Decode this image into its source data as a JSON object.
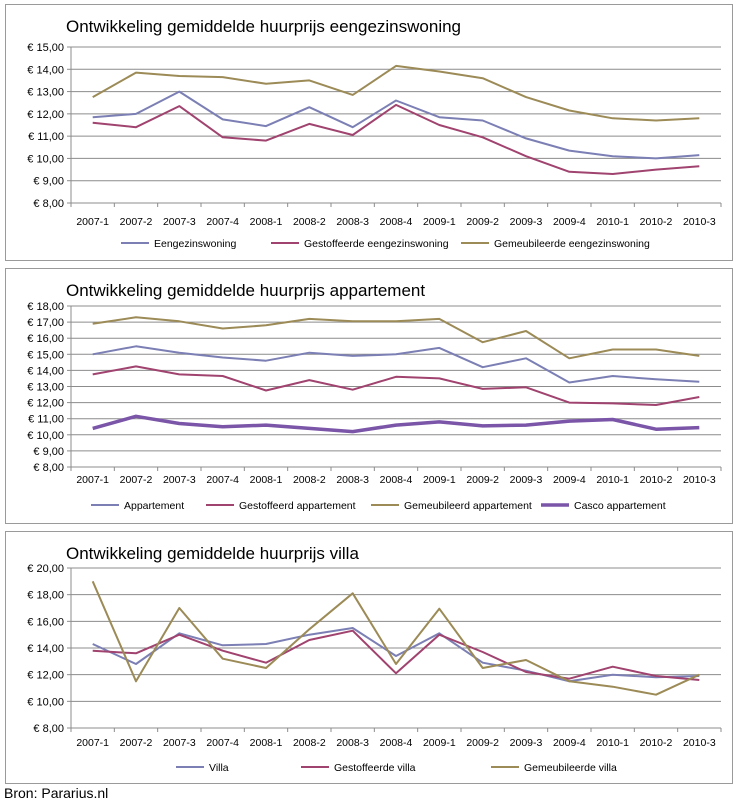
{
  "chart_data": [
    {
      "type": "line",
      "title": "Ontwikkeling gemiddelde huurprijs eengezinswoning",
      "xlabel": "",
      "ylabel": "",
      "categories": [
        "2007-1",
        "2007-2",
        "2007-3",
        "2007-4",
        "2008-1",
        "2008-2",
        "2008-3",
        "2008-4",
        "2009-1",
        "2009-2",
        "2009-3",
        "2009-4",
        "2010-1",
        "2010-2",
        "2010-3"
      ],
      "ylim": [
        8,
        15
      ],
      "ystep": 1,
      "yticks": [
        "€ 8,00",
        "€ 9,00",
        "€ 10,00",
        "€ 11,00",
        "€ 12,00",
        "€ 13,00",
        "€ 14,00",
        "€ 15,00"
      ],
      "grid": true,
      "legend": "bottom",
      "series": [
        {
          "name": "Eengezinswoning",
          "color": "#7b7fb4",
          "values": [
            11.85,
            12.0,
            13.0,
            11.75,
            11.45,
            12.3,
            11.4,
            12.6,
            11.85,
            11.7,
            10.9,
            10.35,
            10.1,
            10.0,
            10.15
          ]
        },
        {
          "name": "Gestoffeerde eengezinswoning",
          "color": "#a0436f",
          "values": [
            11.6,
            11.4,
            12.35,
            10.95,
            10.8,
            11.55,
            11.05,
            12.4,
            11.5,
            10.95,
            10.1,
            9.4,
            9.3,
            9.5,
            9.65
          ]
        },
        {
          "name": "Gemeubileerde eengezinswoning",
          "color": "#9c8b57",
          "values": [
            12.75,
            13.85,
            13.7,
            13.65,
            13.35,
            13.5,
            12.85,
            14.15,
            13.9,
            13.6,
            12.75,
            12.15,
            11.8,
            11.7,
            11.8
          ]
        }
      ]
    },
    {
      "type": "line",
      "title": "Ontwikkeling gemiddelde huurprijs appartement",
      "xlabel": "",
      "ylabel": "",
      "categories": [
        "2007-1",
        "2007-2",
        "2007-3",
        "2007-4",
        "2008-1",
        "2008-2",
        "2008-3",
        "2008-4",
        "2009-1",
        "2009-2",
        "2009-3",
        "2009-4",
        "2010-1",
        "2010-2",
        "2010-3"
      ],
      "ylim": [
        8,
        18
      ],
      "ystep": 1,
      "yticks": [
        "€ 8,00",
        "€ 9,00",
        "€ 10,00",
        "€ 11,00",
        "€ 12,00",
        "€ 13,00",
        "€ 14,00",
        "€ 15,00",
        "€ 16,00",
        "€ 17,00",
        "€ 18,00"
      ],
      "grid": true,
      "legend": "bottom",
      "series": [
        {
          "name": "Appartement",
          "color": "#7b7fb4",
          "values": [
            15.0,
            15.5,
            15.1,
            14.8,
            14.6,
            15.1,
            14.9,
            15.0,
            15.4,
            14.2,
            14.75,
            13.25,
            13.65,
            13.45,
            13.3
          ]
        },
        {
          "name": "Gestoffeerd appartement",
          "color": "#a0436f",
          "values": [
            13.75,
            14.25,
            13.75,
            13.65,
            12.75,
            13.4,
            12.8,
            13.6,
            13.5,
            12.85,
            12.95,
            12.0,
            11.95,
            11.85,
            12.35
          ]
        },
        {
          "name": "Gemeubileerd appartement",
          "color": "#9c8b57",
          "values": [
            16.9,
            17.3,
            17.05,
            16.6,
            16.8,
            17.2,
            17.05,
            17.05,
            17.2,
            15.75,
            16.45,
            14.75,
            15.3,
            15.3,
            14.9
          ]
        },
        {
          "name": "Casco appartement",
          "color": "#7a55a8",
          "thick": true,
          "values": [
            10.4,
            11.15,
            10.7,
            10.5,
            10.6,
            10.4,
            10.2,
            10.6,
            10.8,
            10.55,
            10.6,
            10.85,
            10.95,
            10.35,
            10.45
          ]
        }
      ]
    },
    {
      "type": "line",
      "title": "Ontwikkeling gemiddelde huurprijs villa",
      "xlabel": "",
      "ylabel": "",
      "categories": [
        "2007-1",
        "2007-2",
        "2007-3",
        "2007-4",
        "2008-1",
        "2008-2",
        "2008-3",
        "2008-4",
        "2009-1",
        "2009-2",
        "2009-3",
        "2009-4",
        "2010-1",
        "2010-2",
        "2010-3"
      ],
      "ylim": [
        8,
        20
      ],
      "ystep": 2,
      "yticks": [
        "€ 8,00",
        "€ 10,00",
        "€ 12,00",
        "€ 14,00",
        "€ 16,00",
        "€ 18,00",
        "€ 20,00"
      ],
      "grid": true,
      "legend": "bottom",
      "series": [
        {
          "name": "Villa",
          "color": "#7b7fb4",
          "values": [
            14.3,
            12.8,
            15.1,
            14.2,
            14.3,
            15.0,
            15.5,
            13.4,
            15.1,
            12.9,
            12.3,
            11.5,
            12.0,
            11.8,
            11.9
          ]
        },
        {
          "name": "Gestoffeerde villa",
          "color": "#a0436f",
          "values": [
            13.8,
            13.6,
            15.0,
            13.8,
            12.9,
            14.6,
            15.3,
            12.1,
            15.0,
            13.7,
            12.2,
            11.7,
            12.6,
            11.9,
            11.6
          ]
        },
        {
          "name": "Gemeubileerde villa",
          "color": "#9c8b57",
          "values": [
            19.0,
            11.5,
            17.0,
            13.2,
            12.5,
            15.4,
            18.1,
            12.8,
            16.95,
            12.5,
            13.1,
            11.5,
            11.1,
            10.5,
            12.0
          ]
        }
      ]
    }
  ],
  "footer": {
    "source": "Bron: Pararius.nl"
  },
  "colors": {
    "grid": "#8c8c8c",
    "axis": "#8c8c8c",
    "panel_border": "#9a9a9a"
  }
}
